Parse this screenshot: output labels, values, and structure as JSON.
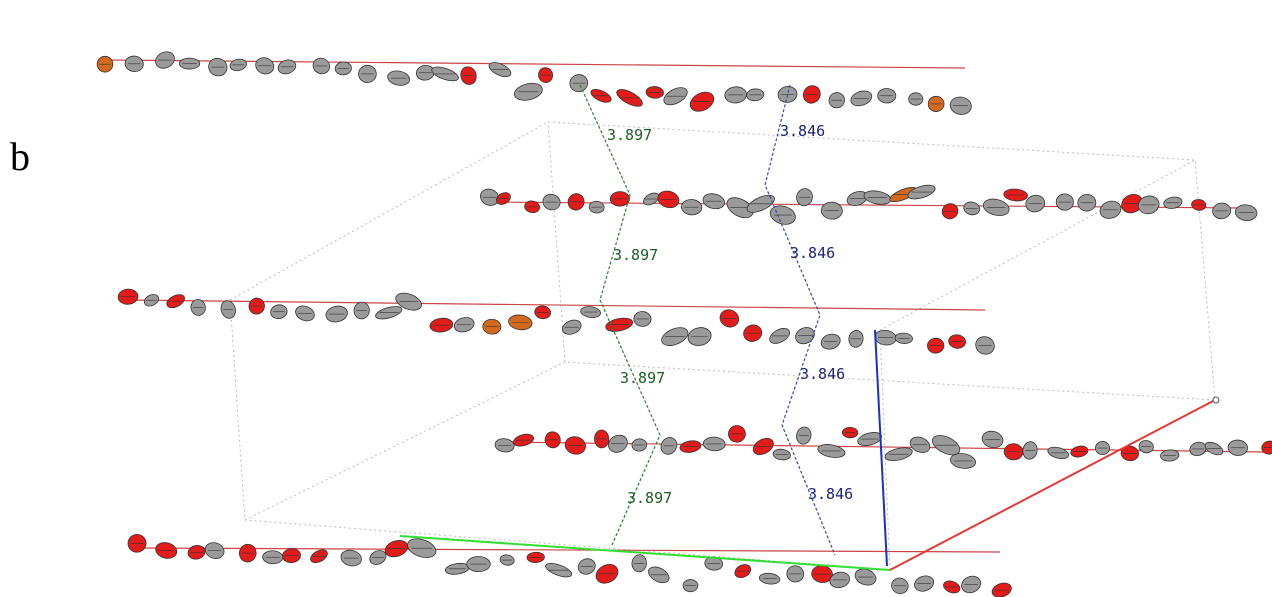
{
  "panel_label": "b",
  "green_distances": [
    "3.897",
    "3.897",
    "3.897",
    "3.897"
  ],
  "blue_distances": [
    "3.846",
    "3.846",
    "3.846",
    "3.846"
  ]
}
